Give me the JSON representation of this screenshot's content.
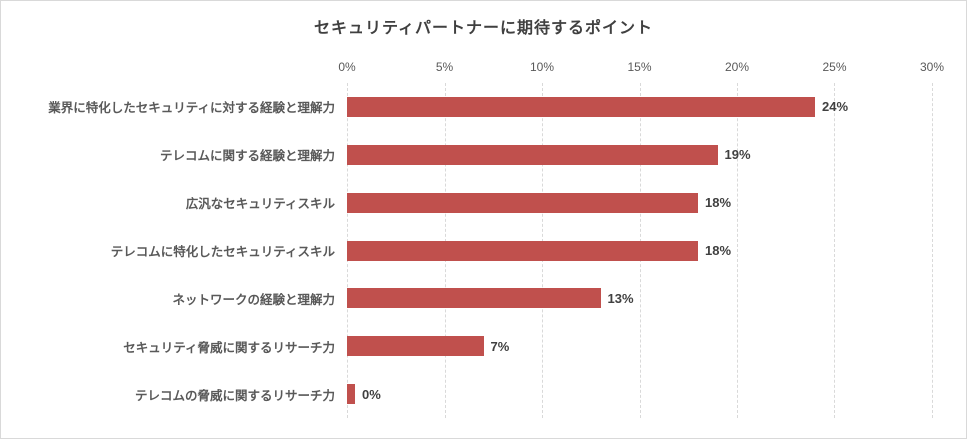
{
  "chart_data": {
    "type": "bar",
    "orientation": "horizontal",
    "title": "セキュリティパートナーに期待するポイント",
    "categories": [
      "業界に特化したセキュリティに対する経験と理解力",
      "テレコムに関する経験と理解力",
      "広汎なセキュリティスキル",
      "テレコムに特化したセキュリティスキル",
      "ネットワークの経験と理解力",
      "セキュリティ脅威に関するリサーチ力",
      "テレコムの脅威に関するリサーチ力"
    ],
    "values": [
      24,
      19,
      18,
      18,
      13,
      7,
      0
    ],
    "data_labels": [
      "24%",
      "19%",
      "18%",
      "18%",
      "13%",
      "7%",
      "0%"
    ],
    "xlabel": "",
    "ylabel": "",
    "xlim": [
      0,
      30
    ],
    "x_tick_labels": [
      "0%",
      "5%",
      "10%",
      "15%",
      "20%",
      "25%",
      "30%"
    ],
    "grid": "vertical-dashed",
    "legend_position": "none",
    "bar_color": "#c0504d",
    "gridline_color": "#d9d9d9",
    "title_color": "#404040",
    "label_color": "#595959"
  }
}
